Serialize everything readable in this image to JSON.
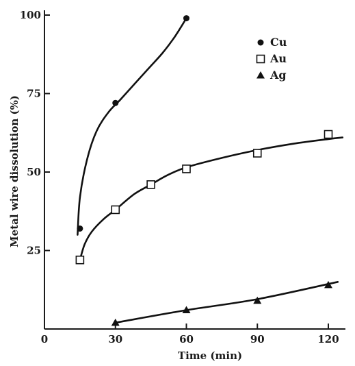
{
  "chart_data": {
    "type": "scatter",
    "title": "",
    "xlabel": "Time (min)",
    "ylabel": "Metal wire dissolution (%)",
    "xlim": [
      0,
      130
    ],
    "ylim": [
      0,
      100
    ],
    "x_ticks": [
      0,
      30,
      60,
      90,
      120
    ],
    "y_ticks": [
      25,
      50,
      75,
      100
    ],
    "x_tick_labels": [
      "0",
      "30",
      "60",
      "90",
      "120"
    ],
    "y_tick_labels": [
      "25",
      "50",
      "75",
      "100"
    ],
    "grid": false,
    "legend_position": "top-right",
    "series": [
      {
        "name": "Cu",
        "marker": "filled-circle",
        "x": [
          15,
          30,
          60
        ],
        "y": [
          32,
          72,
          99
        ],
        "curve": [
          [
            14,
            30
          ],
          [
            15,
            42
          ],
          [
            18,
            54
          ],
          [
            22,
            63
          ],
          [
            27,
            69
          ],
          [
            32,
            73
          ],
          [
            38,
            78
          ],
          [
            44,
            83
          ],
          [
            50,
            88
          ],
          [
            55,
            93
          ],
          [
            60,
            99
          ]
        ]
      },
      {
        "name": "Au",
        "marker": "open-square",
        "x": [
          15,
          30,
          45,
          60,
          90,
          120
        ],
        "y": [
          22,
          38,
          46,
          51,
          56,
          62
        ],
        "curve": [
          [
            15,
            22
          ],
          [
            17,
            27
          ],
          [
            20,
            31
          ],
          [
            25,
            35
          ],
          [
            30,
            38
          ],
          [
            38,
            43
          ],
          [
            45,
            46
          ],
          [
            52,
            49
          ],
          [
            60,
            51.5
          ],
          [
            75,
            54.5
          ],
          [
            90,
            57
          ],
          [
            105,
            59
          ],
          [
            120,
            60.5
          ],
          [
            126,
            61
          ]
        ]
      },
      {
        "name": "Ag",
        "marker": "filled-triangle",
        "x": [
          30,
          60,
          90,
          120
        ],
        "y": [
          2,
          6,
          9,
          14
        ],
        "curve": [
          [
            30,
            2
          ],
          [
            60,
            6
          ],
          [
            90,
            9.5
          ],
          [
            124,
            15
          ]
        ]
      }
    ]
  }
}
